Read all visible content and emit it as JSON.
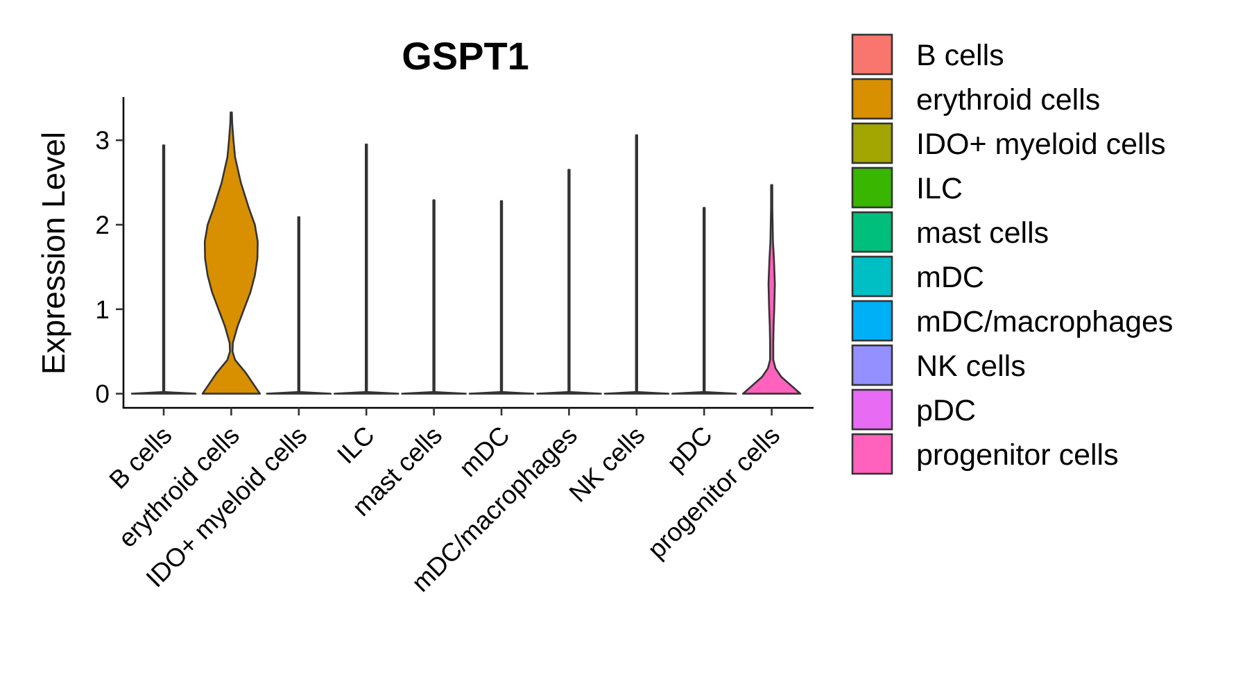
{
  "chart_data": {
    "type": "violin",
    "title": "GSPT1",
    "xlabel": "",
    "ylabel": "Expression Level",
    "ylim": [
      -0.15,
      3.5
    ],
    "yticks": [
      0,
      1,
      2,
      3
    ],
    "grid": false,
    "legend_position": "right",
    "categories": [
      "B cells",
      "erythroid cells",
      "IDO+ myeloid cells",
      "ILC",
      "mast cells",
      "mDC",
      "mDC/macrophages",
      "NK cells",
      "pDC",
      "progenitor cells"
    ],
    "colors": [
      "#F8766D",
      "#D89000",
      "#A3A500",
      "#39B600",
      "#00BF7D",
      "#00BFC4",
      "#00B0F6",
      "#9590FF",
      "#E76BF3",
      "#FF62BC"
    ],
    "max_values": [
      2.94,
      3.33,
      2.09,
      2.95,
      2.29,
      2.28,
      2.65,
      3.06,
      2.2,
      2.47
    ],
    "density_profiles": [
      [
        [
          0,
          1.0
        ],
        [
          0.02,
          0.0
        ],
        [
          2.94,
          0.0
        ]
      ],
      [
        [
          0,
          0.9
        ],
        [
          0.1,
          0.72
        ],
        [
          0.25,
          0.45
        ],
        [
          0.4,
          0.12
        ],
        [
          0.5,
          0.04
        ],
        [
          0.6,
          0.05
        ],
        [
          0.8,
          0.2
        ],
        [
          1.0,
          0.4
        ],
        [
          1.2,
          0.6
        ],
        [
          1.4,
          0.74
        ],
        [
          1.6,
          0.82
        ],
        [
          1.8,
          0.83
        ],
        [
          2.0,
          0.74
        ],
        [
          2.2,
          0.55
        ],
        [
          2.5,
          0.3
        ],
        [
          2.8,
          0.12
        ],
        [
          3.0,
          0.07
        ],
        [
          3.2,
          0.03
        ],
        [
          3.33,
          0.0
        ]
      ],
      [
        [
          0,
          1.0
        ],
        [
          0.02,
          0.0
        ],
        [
          2.09,
          0.0
        ]
      ],
      [
        [
          0,
          1.0
        ],
        [
          0.02,
          0.0
        ],
        [
          2.95,
          0.0
        ]
      ],
      [
        [
          0,
          1.0
        ],
        [
          0.02,
          0.0
        ],
        [
          2.29,
          0.0
        ]
      ],
      [
        [
          0,
          1.0
        ],
        [
          0.02,
          0.0
        ],
        [
          2.28,
          0.0
        ]
      ],
      [
        [
          0,
          1.0
        ],
        [
          0.02,
          0.0
        ],
        [
          2.65,
          0.0
        ]
      ],
      [
        [
          0,
          1.0
        ],
        [
          0.02,
          0.0
        ],
        [
          3.06,
          0.0
        ]
      ],
      [
        [
          0,
          1.0
        ],
        [
          0.02,
          0.0
        ],
        [
          2.2,
          0.0
        ]
      ],
      [
        [
          0,
          0.9
        ],
        [
          0.1,
          0.6
        ],
        [
          0.2,
          0.3
        ],
        [
          0.3,
          0.12
        ],
        [
          0.4,
          0.05
        ],
        [
          0.6,
          0.05
        ],
        [
          0.8,
          0.06
        ],
        [
          1.0,
          0.08
        ],
        [
          1.3,
          0.1
        ],
        [
          1.6,
          0.07
        ],
        [
          1.8,
          0.04
        ],
        [
          2.0,
          0.03
        ],
        [
          2.2,
          0.02
        ],
        [
          2.47,
          0.0
        ]
      ]
    ]
  }
}
